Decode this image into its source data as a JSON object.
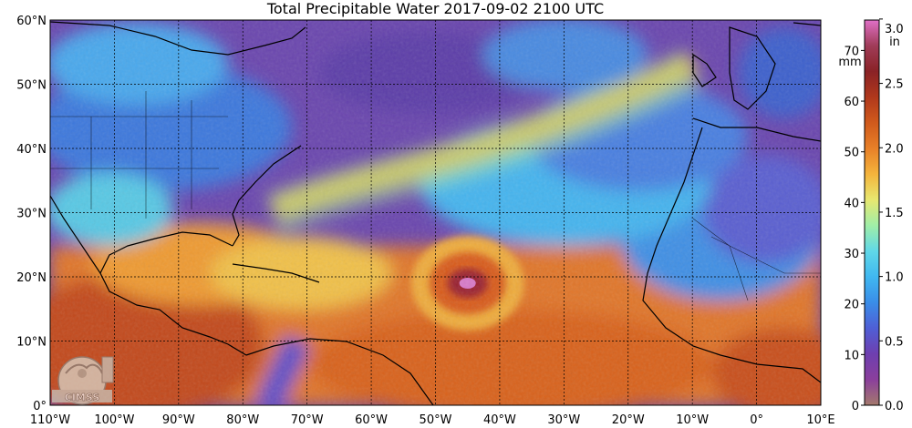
{
  "title": "Total Precipitable Water  2017-09-02 2100 UTC",
  "logo": {
    "text": "CIMSS",
    "icon": "cimss-logo-icon"
  },
  "map": {
    "lon_range": [
      -110,
      10
    ],
    "lat_range": [
      0,
      60
    ],
    "grid_lon_step": 10,
    "grid_lat_step": 10,
    "lat_labels": [
      "60°N",
      "50°N",
      "40°N",
      "30°N",
      "20°N",
      "10°N",
      "0°"
    ],
    "lon_labels": [
      "110°W",
      "100°W",
      "90°W",
      "80°W",
      "70°W",
      "60°W",
      "50°W",
      "40°W",
      "30°W",
      "20°W",
      "10°W",
      "0°",
      "10°E"
    ],
    "hurricane_center": {
      "lon": -45,
      "lat": 19
    }
  },
  "colorbar": {
    "mm_unit": "mm",
    "in_unit": "in",
    "mm_ticks": [
      "70",
      "60",
      "50",
      "40",
      "30",
      "20",
      "10",
      "0"
    ],
    "in_ticks": [
      "3.0",
      "2.5",
      "2.0",
      "1.5",
      "1.0",
      "0.5",
      "0.0"
    ],
    "range_mm": [
      0,
      76
    ],
    "colors": [
      "#a47a6c",
      "#8a3f9c",
      "#6e3fb0",
      "#4f5fd6",
      "#3a8de8",
      "#40b8f0",
      "#60d8e8",
      "#a0eea8",
      "#e8e870",
      "#f4b43c",
      "#e88028",
      "#d05a1c",
      "#b0381c",
      "#8a2226",
      "#a03c58",
      "#e070c8"
    ]
  }
}
